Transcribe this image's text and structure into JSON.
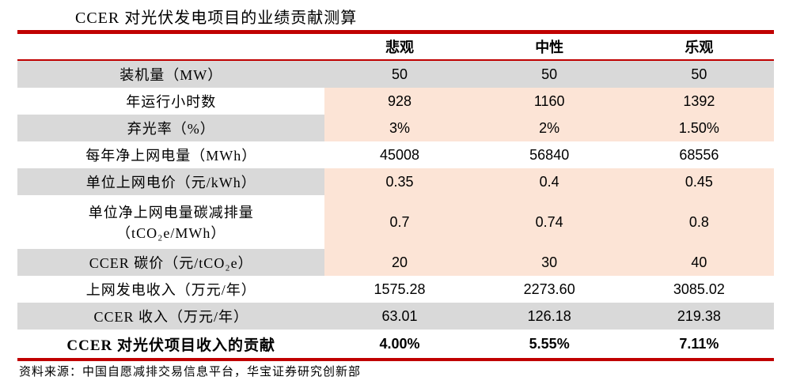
{
  "title": "CCER 对光伏发电项目的业绩贡献测算",
  "colors": {
    "accent_red": "#c00000",
    "row_gray": "#d9d9d9",
    "input_cell_pink": "#fce4d6"
  },
  "table": {
    "columns": [
      "悲观",
      "中性",
      "乐观"
    ],
    "rows": [
      {
        "label": "装机量（MW）",
        "values": [
          "50",
          "50",
          "50"
        ]
      },
      {
        "label": "年运行小时数",
        "values": [
          "928",
          "1160",
          "1392"
        ]
      },
      {
        "label": "弃光率（%）",
        "values": [
          "3%",
          "2%",
          "1.50%"
        ]
      },
      {
        "label": "每年净上网电量（MWh）",
        "values": [
          "45008",
          "56840",
          "68556"
        ]
      },
      {
        "label": "单位上网电价（元/kWh）",
        "values": [
          "0.35",
          "0.4",
          "0.45"
        ]
      },
      {
        "label": "单位净上网电量碳减排量",
        "label2": "（tCO₂e/MWh）",
        "values": [
          "0.7",
          "0.74",
          "0.8"
        ]
      },
      {
        "label": "CCER 碳价（元/tCO₂e）",
        "values": [
          "20",
          "30",
          "40"
        ]
      },
      {
        "label": "上网发电收入（万元/年）",
        "values": [
          "1575.28",
          "2273.60",
          "3085.02"
        ]
      },
      {
        "label": "CCER 收入（万元/年）",
        "values": [
          "63.01",
          "126.18",
          "219.38"
        ]
      },
      {
        "label": "CCER 对光伏项目收入的贡献",
        "values": [
          "4.00%",
          "5.55%",
          "7.11%"
        ]
      }
    ]
  },
  "footer": {
    "source": "资料来源：中国自愿减排交易信息平台，华宝证券研究创新部"
  }
}
